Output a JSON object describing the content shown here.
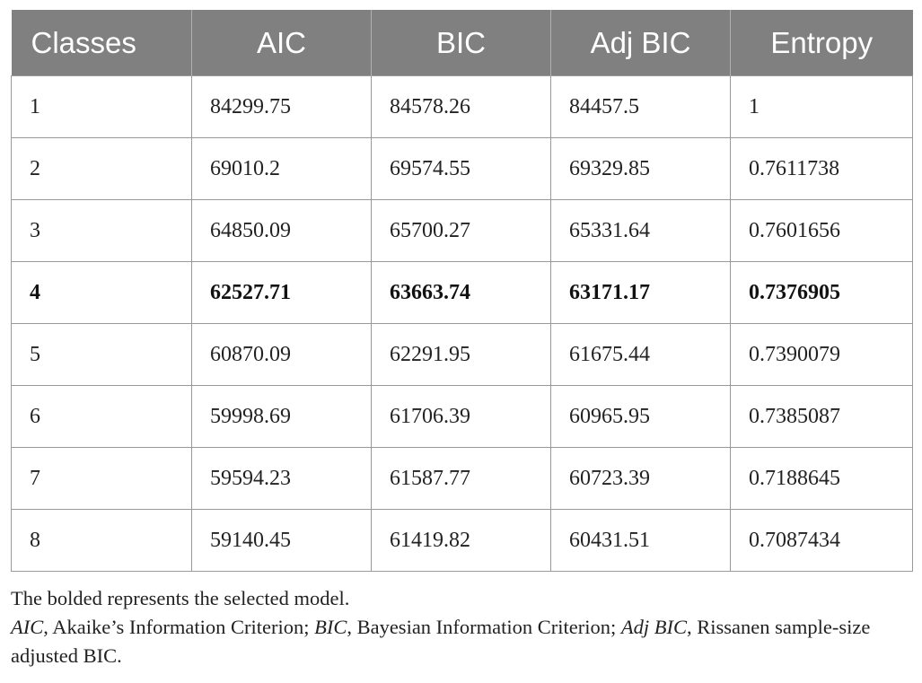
{
  "table": {
    "headers": [
      "Classes",
      "AIC",
      "BIC",
      "Adj BIC",
      "Entropy"
    ],
    "selected_class": "4",
    "rows": [
      [
        "1",
        "84299.75",
        "84578.26",
        "84457.5",
        "1"
      ],
      [
        "2",
        "69010.2",
        "69574.55",
        "69329.85",
        "0.7611738"
      ],
      [
        "3",
        "64850.09",
        "65700.27",
        "65331.64",
        "0.7601656"
      ],
      [
        "4",
        "62527.71",
        "63663.74",
        "63171.17",
        "0.7376905"
      ],
      [
        "5",
        "60870.09",
        "62291.95",
        "61675.44",
        "0.7390079"
      ],
      [
        "6",
        "59998.69",
        "61706.39",
        "60965.95",
        "0.7385087"
      ],
      [
        "7",
        "59594.23",
        "61587.77",
        "60723.39",
        "0.7188645"
      ],
      [
        "8",
        "59140.45",
        "61419.82",
        "60431.51",
        "0.7087434"
      ]
    ]
  },
  "footnotes": {
    "note": "The bolded represents the selected model.",
    "abbreviations": [
      {
        "term": "AIC",
        "definition": ", Akaike’s Information Criterion; "
      },
      {
        "term": "BIC",
        "definition": ", Bayesian Information Criterion; "
      },
      {
        "term": "Adj BIC",
        "definition": ", Rissanen sample-size adjusted BIC."
      }
    ]
  }
}
